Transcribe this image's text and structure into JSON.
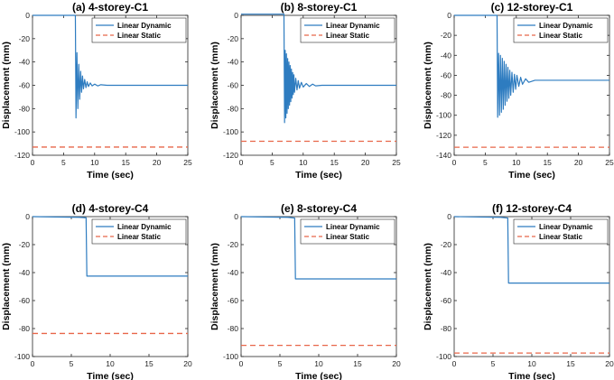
{
  "chart_data": [
    {
      "type": "line",
      "title": "(a) 4-storey-C1",
      "xlabel": "Time (sec)",
      "ylabel": "Displacement (mm)",
      "xlim": [
        0,
        25
      ],
      "ylim": [
        -120,
        0
      ],
      "xticks": [
        0,
        5,
        10,
        15,
        20,
        25
      ],
      "yticks": [
        0,
        -20,
        -40,
        -60,
        -80,
        -100,
        -120
      ],
      "grid": false,
      "legend": "top-right",
      "series": [
        {
          "name": "Linear Dynamic",
          "color": "#2e7cc0",
          "style": "solid",
          "x": [
            0,
            6.9,
            7.0,
            7.15,
            7.3,
            7.45,
            7.6,
            7.75,
            7.9,
            8.05,
            8.2,
            8.4,
            8.6,
            8.8,
            9.0,
            9.3,
            9.6,
            10.0,
            10.5,
            11.0,
            12.0,
            25
          ],
          "y": [
            0,
            0,
            -88,
            -32,
            -80,
            -42,
            -72,
            -48,
            -66,
            -52,
            -63,
            -55,
            -62,
            -57,
            -61,
            -58,
            -60.5,
            -59,
            -60.5,
            -59.5,
            -60,
            -60
          ]
        },
        {
          "name": "Linear Static",
          "color": "#e8674a",
          "style": "dashed",
          "x": [
            0,
            25
          ],
          "y": [
            -113,
            -113
          ]
        }
      ]
    },
    {
      "type": "line",
      "title": "(b) 8-storey-C1",
      "xlabel": "Time (sec)",
      "ylabel": "Displacement (mm)",
      "xlim": [
        0,
        25
      ],
      "ylim": [
        -120,
        0
      ],
      "xticks": [
        0,
        5,
        10,
        15,
        20,
        25
      ],
      "yticks": [
        0,
        -20,
        -40,
        -60,
        -80,
        -100,
        -120
      ],
      "grid": false,
      "legend": "top-right",
      "series": [
        {
          "name": "Linear Dynamic",
          "color": "#2e7cc0",
          "style": "solid",
          "x": [
            0,
            6.9,
            7.0,
            7.1,
            7.2,
            7.3,
            7.4,
            7.5,
            7.6,
            7.7,
            7.8,
            7.9,
            8.0,
            8.1,
            8.2,
            8.3,
            8.4,
            8.5,
            8.6,
            8.8,
            9.0,
            9.2,
            9.4,
            9.7,
            10.0,
            10.5,
            11.0,
            11.5,
            12.0,
            13.0,
            25
          ],
          "y": [
            1,
            1,
            -92,
            -30,
            -88,
            -33,
            -84,
            -37,
            -80,
            -40,
            -77,
            -43,
            -74,
            -46,
            -71,
            -49,
            -68,
            -51,
            -66,
            -54,
            -64,
            -56,
            -62.5,
            -57.5,
            -61.5,
            -58.5,
            -61,
            -59,
            -60.5,
            -60,
            -60
          ]
        },
        {
          "name": "Linear Static",
          "color": "#e8674a",
          "style": "dashed",
          "x": [
            0,
            25
          ],
          "y": [
            -108,
            -108
          ]
        }
      ]
    },
    {
      "type": "line",
      "title": "(c) 12-storey-C1",
      "xlabel": "Time (sec)",
      "ylabel": "Displacement (mm)",
      "xlim": [
        0,
        25
      ],
      "ylim": [
        -140,
        0
      ],
      "xticks": [
        0,
        5,
        10,
        15,
        20,
        25
      ],
      "yticks": [
        0,
        -20,
        -40,
        -60,
        -80,
        -100,
        -120,
        -140
      ],
      "grid": false,
      "legend": "top-right",
      "series": [
        {
          "name": "Linear Dynamic",
          "color": "#2e7cc0",
          "style": "solid",
          "x": [
            0,
            6.9,
            7.0,
            7.15,
            7.3,
            7.45,
            7.6,
            7.75,
            7.9,
            8.05,
            8.2,
            8.35,
            8.5,
            8.65,
            8.8,
            8.95,
            9.1,
            9.3,
            9.5,
            9.7,
            9.9,
            10.1,
            10.4,
            10.7,
            11.0,
            11.5,
            12.0,
            13.0,
            14.0,
            25
          ],
          "y": [
            0,
            0,
            -102,
            -38,
            -100,
            -40,
            -97,
            -43,
            -94,
            -46,
            -90,
            -49,
            -86,
            -52,
            -83,
            -55,
            -80,
            -57,
            -77,
            -59,
            -74,
            -60,
            -71,
            -62,
            -69,
            -63.5,
            -67,
            -65,
            -65,
            -65
          ]
        },
        {
          "name": "Linear Static",
          "color": "#e8674a",
          "style": "dashed",
          "x": [
            0,
            25
          ],
          "y": [
            -132,
            -132
          ]
        }
      ]
    },
    {
      "type": "line",
      "title": "(d) 4-storey-C4",
      "xlabel": "Time (sec)",
      "ylabel": "Displacement (mm)",
      "xlim": [
        0,
        20
      ],
      "ylim": [
        -100,
        0
      ],
      "xticks": [
        0,
        5,
        10,
        15,
        20
      ],
      "yticks": [
        0,
        -20,
        -40,
        -60,
        -80,
        -100
      ],
      "grid": false,
      "legend": "top-right",
      "series": [
        {
          "name": "Linear Dynamic",
          "color": "#2e7cc0",
          "style": "solid",
          "x": [
            0,
            6.0,
            6.9,
            7.0,
            20
          ],
          "y": [
            0,
            -0.5,
            -0.8,
            -42.5,
            -42.5
          ]
        },
        {
          "name": "Linear Static",
          "color": "#e8674a",
          "style": "dashed",
          "x": [
            0,
            20
          ],
          "y": [
            -83.5,
            -83.5
          ]
        }
      ]
    },
    {
      "type": "line",
      "title": "(e) 8-storey-C4",
      "xlabel": "Time (sec)",
      "ylabel": "Displacement (mm)",
      "xlim": [
        0,
        20
      ],
      "ylim": [
        -100,
        0
      ],
      "xticks": [
        0,
        5,
        10,
        15,
        20
      ],
      "yticks": [
        0,
        -20,
        -40,
        -60,
        -80,
        -100
      ],
      "grid": false,
      "legend": "top-right",
      "series": [
        {
          "name": "Linear Dynamic",
          "color": "#2e7cc0",
          "style": "solid",
          "x": [
            0,
            6.0,
            6.9,
            7.0,
            20
          ],
          "y": [
            0,
            -0.5,
            -1.0,
            -44.5,
            -44.5
          ]
        },
        {
          "name": "Linear Static",
          "color": "#e8674a",
          "style": "dashed",
          "x": [
            0,
            20
          ],
          "y": [
            -92,
            -92
          ]
        }
      ]
    },
    {
      "type": "line",
      "title": "(f) 12-storey-C4",
      "xlabel": "Time (sec)",
      "ylabel": "Displacement (mm)",
      "xlim": [
        0,
        20
      ],
      "ylim": [
        -100,
        0
      ],
      "xticks": [
        0,
        5,
        10,
        15,
        20
      ],
      "yticks": [
        0,
        -20,
        -40,
        -60,
        -80,
        -100
      ],
      "grid": false,
      "legend": "top-right",
      "series": [
        {
          "name": "Linear Dynamic",
          "color": "#2e7cc0",
          "style": "solid",
          "x": [
            0,
            6.0,
            6.9,
            7.0,
            20
          ],
          "y": [
            0,
            -0.5,
            -1.0,
            -47.5,
            -47.5
          ]
        },
        {
          "name": "Linear Static",
          "color": "#e8674a",
          "style": "dashed",
          "x": [
            0,
            20
          ],
          "y": [
            -97.5,
            -97.5
          ]
        }
      ]
    }
  ]
}
